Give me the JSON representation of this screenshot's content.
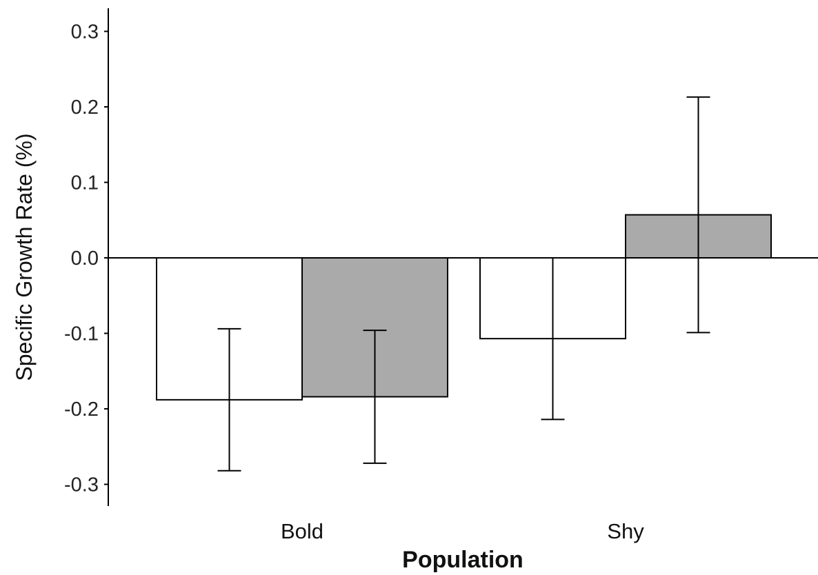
{
  "chart_data": {
    "type": "bar",
    "categories": [
      "Bold",
      "Shy"
    ],
    "series": [
      {
        "fill": "#ffffff",
        "values": [
          -0.188,
          -0.107
        ],
        "error": [
          0.094,
          0.107
        ]
      },
      {
        "fill": "#aaaaaa",
        "values": [
          -0.184,
          0.057
        ],
        "error": [
          0.088,
          0.156
        ]
      }
    ],
    "xlabel": "Population",
    "ylabel": "Specific Growth Rate (%)",
    "ylim": [
      -0.33,
      0.33
    ],
    "yticks": [
      -0.3,
      -0.2,
      -0.1,
      0.0,
      0.1,
      0.2,
      0.3
    ],
    "ytick_labels": [
      "-0.3",
      "-0.2",
      "-0.1",
      "0.0",
      "0.1",
      "0.2",
      "0.3"
    ],
    "grid": false,
    "legend": "none",
    "colors": {
      "axis": "#000000",
      "bar_outline": "#000000",
      "fill_1": "#ffffff",
      "fill_2": "#aaaaaa"
    }
  }
}
